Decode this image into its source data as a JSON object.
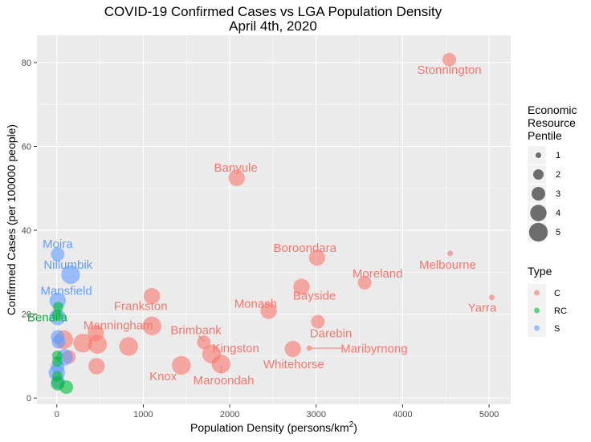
{
  "chart_data": {
    "type": "scatter",
    "title": "COVID-19 Confirmed Cases vs LGA Population Density",
    "subtitle": "April 4th, 2020",
    "xlabel": "Population Density (persons/km",
    "xlabel_sup": "2",
    "xlabel_end": ")",
    "ylabel": "Confirmed Cases (per 100000 people)",
    "xlim": [
      -230,
      5250
    ],
    "ylim": [
      -1.5,
      86.5
    ],
    "xticks": [
      0,
      1000,
      2000,
      3000,
      4000,
      5000
    ],
    "yticks": [
      0,
      20,
      40,
      60,
      80
    ],
    "colors": {
      "C": "#F8766D",
      "RC": "#00BA38",
      "S": "#619CFF",
      "panel": "#EBEBEB",
      "grid": "#FFFFFF"
    },
    "legend_size": {
      "title_lines": [
        "Economic",
        "Resource",
        "Pentile"
      ],
      "levels": [
        "1",
        "2",
        "3",
        "4",
        "5"
      ]
    },
    "legend_type": {
      "title": "Type",
      "levels": [
        "C",
        "RC",
        "S"
      ]
    },
    "points": [
      {
        "x": 4540,
        "y": 80.7,
        "size": 3,
        "type": "C"
      },
      {
        "x": 2080,
        "y": 52.5,
        "size": 4,
        "type": "C"
      },
      {
        "x": 3010,
        "y": 33.5,
        "size": 4,
        "type": "C"
      },
      {
        "x": 4550,
        "y": 34.5,
        "size": 1,
        "type": "C"
      },
      {
        "x": 3560,
        "y": 27.5,
        "size": 3,
        "type": "C"
      },
      {
        "x": 2830,
        "y": 26.5,
        "size": 4,
        "type": "C"
      },
      {
        "x": 5030,
        "y": 24.0,
        "size": 1,
        "type": "C"
      },
      {
        "x": 1100,
        "y": 24.3,
        "size": 4,
        "type": "C"
      },
      {
        "x": 2450,
        "y": 20.8,
        "size": 4,
        "type": "C"
      },
      {
        "x": 3020,
        "y": 18.2,
        "size": 3,
        "type": "C"
      },
      {
        "x": 1100,
        "y": 17.2,
        "size": 5,
        "type": "C"
      },
      {
        "x": 450,
        "y": 15.5,
        "size": 4,
        "type": "C"
      },
      {
        "x": 1700,
        "y": 13.3,
        "size": 3,
        "type": "C"
      },
      {
        "x": 2730,
        "y": 11.7,
        "size": 4,
        "type": "C"
      },
      {
        "x": 2920,
        "y": 11.9,
        "size": 1,
        "type": "C"
      },
      {
        "x": 1790,
        "y": 10.5,
        "size": 5,
        "type": "C"
      },
      {
        "x": 1900,
        "y": 8.1,
        "size": 5,
        "type": "C"
      },
      {
        "x": 1440,
        "y": 7.8,
        "size": 5,
        "type": "C"
      },
      {
        "x": 460,
        "y": 7.6,
        "size": 4,
        "type": "C"
      },
      {
        "x": 300,
        "y": 13.1,
        "size": 5,
        "type": "C"
      },
      {
        "x": 470,
        "y": 12.8,
        "size": 5,
        "type": "C"
      },
      {
        "x": 830,
        "y": 12.3,
        "size": 5,
        "type": "C"
      },
      {
        "x": 80,
        "y": 13.9,
        "size": 5,
        "type": "C"
      },
      {
        "x": 140,
        "y": 9.8,
        "size": 3,
        "type": "C"
      },
      {
        "x": 10,
        "y": 34.3,
        "size": 3,
        "type": "S"
      },
      {
        "x": 160,
        "y": 29.4,
        "size": 5,
        "type": "S"
      },
      {
        "x": 10,
        "y": 23.2,
        "size": 4,
        "type": "S"
      },
      {
        "x": 10,
        "y": 19.3,
        "size": 4,
        "type": "S"
      },
      {
        "x": 10,
        "y": 14.6,
        "size": 3,
        "type": "S"
      },
      {
        "x": 20,
        "y": 13.4,
        "size": 3,
        "type": "S"
      },
      {
        "x": 90,
        "y": 9.7,
        "size": 4,
        "type": "S"
      },
      {
        "x": 10,
        "y": 7.4,
        "size": 3,
        "type": "S"
      },
      {
        "x": 0,
        "y": 6.0,
        "size": 4,
        "type": "S"
      },
      {
        "x": 15,
        "y": 3.8,
        "size": 3,
        "type": "S"
      },
      {
        "x": 15,
        "y": 21.7,
        "size": 2,
        "type": "RC"
      },
      {
        "x": 5,
        "y": 19.8,
        "size": 2,
        "type": "RC"
      },
      {
        "x": 5,
        "y": 10.1,
        "size": 2,
        "type": "RC"
      },
      {
        "x": 5,
        "y": 8.7,
        "size": 2,
        "type": "RC"
      },
      {
        "x": 5,
        "y": 5.2,
        "size": 2,
        "type": "RC"
      },
      {
        "x": 10,
        "y": 3.4,
        "size": 3,
        "type": "RC"
      },
      {
        "x": 110,
        "y": 2.6,
        "size": 3,
        "type": "RC"
      }
    ],
    "labels": [
      {
        "text": "Stonnington",
        "x": 4540,
        "y": 78.3,
        "type": "C"
      },
      {
        "text": "Banyule",
        "x": 2070,
        "y": 54.9,
        "type": "C"
      },
      {
        "text": "Boroondara",
        "x": 2870,
        "y": 35.8,
        "type": "C"
      },
      {
        "text": "Melbourne",
        "x": 4520,
        "y": 31.8,
        "type": "C"
      },
      {
        "text": "Moreland",
        "x": 3710,
        "y": 29.7,
        "type": "C"
      },
      {
        "text": "Bayside",
        "x": 2980,
        "y": 24.4,
        "type": "C"
      },
      {
        "text": "Yarra",
        "x": 4920,
        "y": 21.6,
        "type": "C"
      },
      {
        "text": "Frankston",
        "x": 970,
        "y": 21.9,
        "type": "C"
      },
      {
        "text": "Monash",
        "x": 2300,
        "y": 22.5,
        "type": "C"
      },
      {
        "text": "Darebin",
        "x": 3170,
        "y": 15.4,
        "type": "C"
      },
      {
        "text": "Manningham",
        "x": 710,
        "y": 17.3,
        "type": "C"
      },
      {
        "text": "Brimbank",
        "x": 1610,
        "y": 16.2,
        "type": "C"
      },
      {
        "text": "Kingston",
        "x": 2070,
        "y": 11.9,
        "type": "C"
      },
      {
        "text": "Maribyrnong",
        "x": 3670,
        "y": 11.8,
        "type": "C"
      },
      {
        "text": "Whitehorse",
        "x": 2740,
        "y": 8.1,
        "type": "C"
      },
      {
        "text": "Knox",
        "x": 1230,
        "y": 5.2,
        "type": "C"
      },
      {
        "text": "Maroondah",
        "x": 1930,
        "y": 4.2,
        "type": "C"
      },
      {
        "text": "Moira",
        "x": 10,
        "y": 36.8,
        "type": "S"
      },
      {
        "text": "Nillumbik",
        "x": 130,
        "y": 31.8,
        "type": "S"
      },
      {
        "text": "Mansfield",
        "x": 110,
        "y": 25.6,
        "type": "S"
      },
      {
        "text": "Benalla",
        "x": -110,
        "y": 19.3,
        "type": "RC"
      }
    ],
    "leaders": [
      {
        "x1": 2940,
        "y1": 11.9,
        "x2": 3300,
        "y2": 11.9
      },
      {
        "x1": 1700,
        "y1": 13.6,
        "x2": 1640,
        "y2": 14.9
      },
      {
        "x1": 1900,
        "y1": 7.6,
        "x2": 1900,
        "y2": 5.9
      }
    ]
  }
}
